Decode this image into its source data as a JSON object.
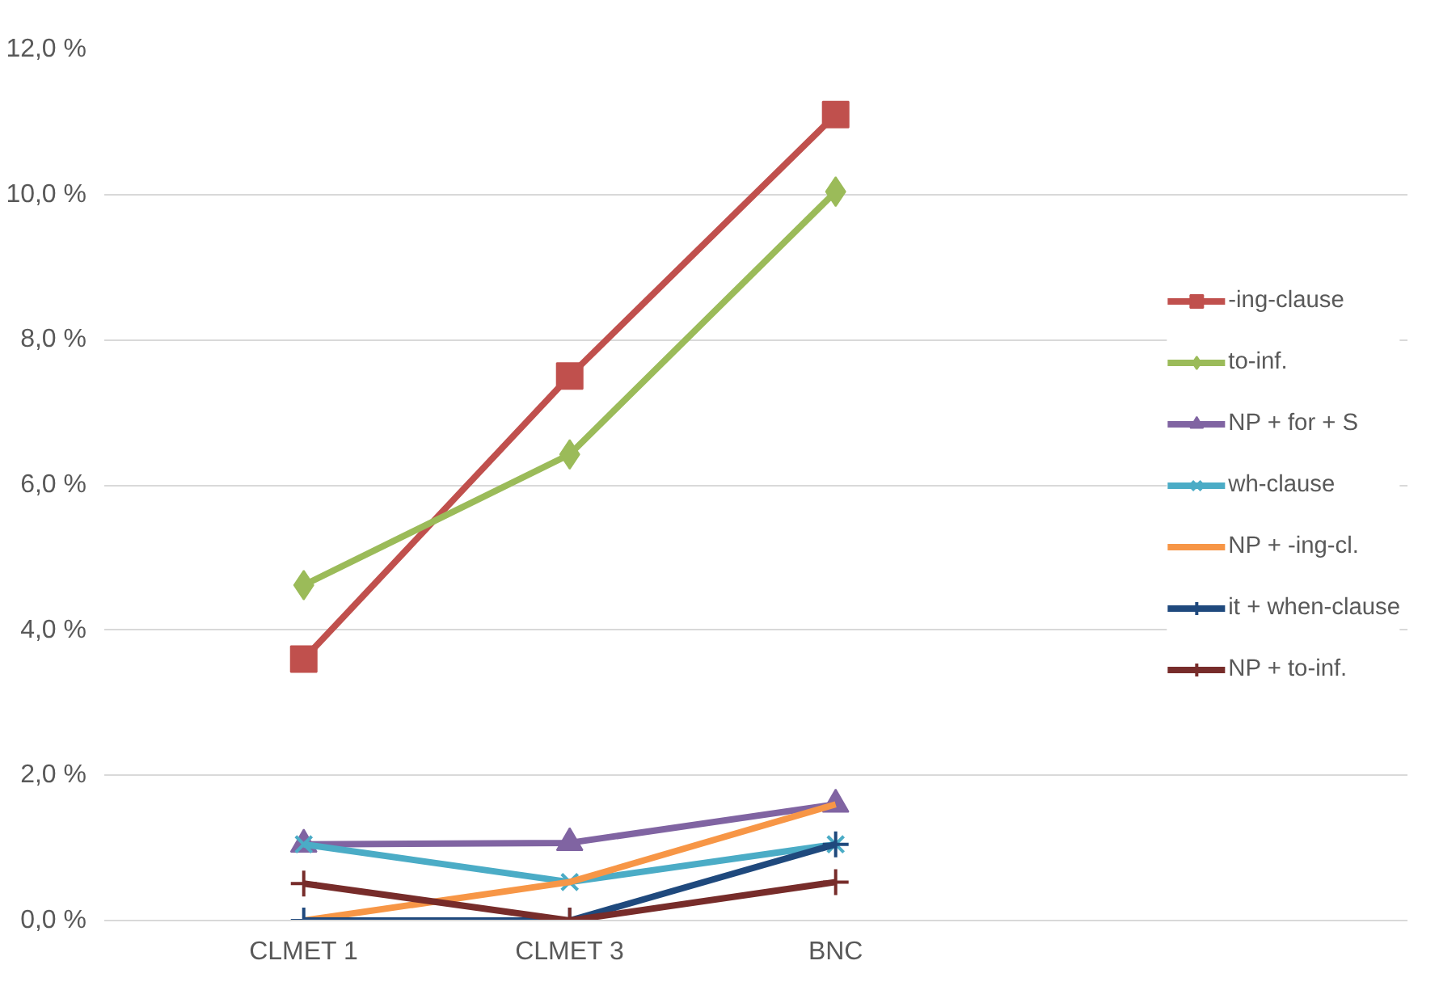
{
  "chart_data": {
    "type": "line",
    "categories": [
      "CLMET 1",
      "CLMET 3",
      "BNC"
    ],
    "ylim": [
      0,
      12
    ],
    "yticks": [
      {
        "value": 0,
        "label": "0,0 %"
      },
      {
        "value": 2,
        "label": "2,0 %"
      },
      {
        "value": 4,
        "label": "4,0 %"
      },
      {
        "value": 6,
        "label": "6,0 %"
      },
      {
        "value": 8,
        "label": "8,0 %"
      },
      {
        "value": 10,
        "label": "10,0 %"
      },
      {
        "value": 12,
        "label": "12,0 %"
      }
    ],
    "grid": "y",
    "legend": "right",
    "series": [
      {
        "name": "-ing-clause",
        "color": "#c0504d",
        "marker": "square",
        "values": [
          3.6,
          7.5,
          11.1
        ]
      },
      {
        "name": "to-inf.",
        "color": "#9bbb59",
        "marker": "diamond",
        "values": [
          4.62,
          6.42,
          10.04
        ]
      },
      {
        "name": "NP + for + S",
        "color": "#8064a2",
        "marker": "triangle",
        "values": [
          1.05,
          1.07,
          1.6
        ]
      },
      {
        "name": "wh-clause",
        "color": "#4bacc6",
        "marker": "x",
        "values": [
          1.05,
          0.53,
          1.05
        ]
      },
      {
        "name": "NP + -ing-cl.",
        "color": "#f79646",
        "marker": "none",
        "values": [
          0,
          0.53,
          1.6
        ]
      },
      {
        "name": "it + when-clause",
        "color": "#1f497d",
        "marker": "cross",
        "values": [
          0,
          0,
          1.05
        ]
      },
      {
        "name": "NP + to-inf.",
        "color": "#772c2a",
        "marker": "cross",
        "values": [
          0.51,
          0,
          0.53
        ]
      }
    ]
  }
}
